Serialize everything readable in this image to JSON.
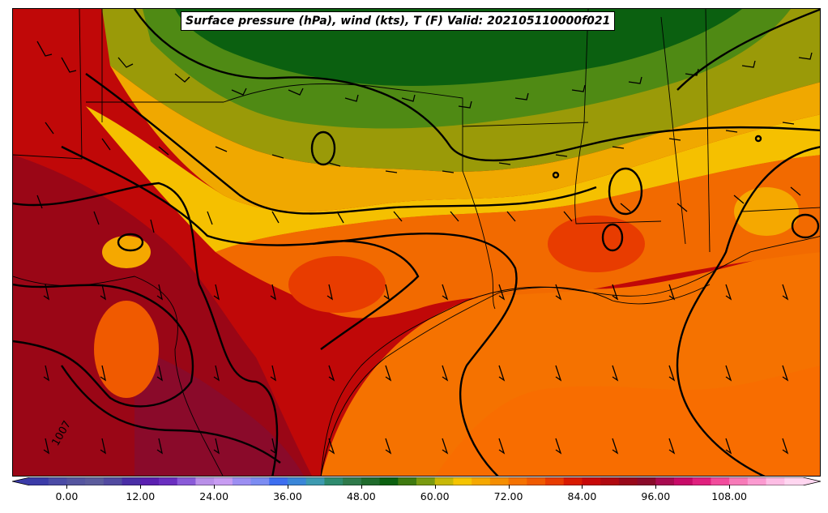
{
  "title": "Surface pressure (hPa), wind (kts), T (F) Valid: 202105110000f021",
  "colorbar": {
    "tick_labels": [
      "0.00",
      "12.00",
      "24.00",
      "36.00",
      "48.00",
      "60.00",
      "72.00",
      "84.00",
      "96.00",
      "108.00"
    ],
    "min": -6,
    "max": 120,
    "step": 3,
    "extend": "both",
    "colors": [
      "#3b3ba8",
      "#4b4ba6",
      "#55559f",
      "#5c5c9c",
      "#524aa0",
      "#4a2ea6",
      "#5a1fb0",
      "#6a2ec0",
      "#8a5ad8",
      "#b98fe8",
      "#c89cf2",
      "#9c8ef2",
      "#7c8cf2",
      "#3d6ef0",
      "#3a86d8",
      "#3d9ab0",
      "#2e8b6e",
      "#2f7a4a",
      "#1f6b2c",
      "#0b6010",
      "#3f7a10",
      "#7a9a10",
      "#c8b806",
      "#f5c400",
      "#f5a800",
      "#f58e00",
      "#f57200",
      "#f05a00",
      "#e83c00",
      "#d81a00",
      "#c80808",
      "#b00810",
      "#98081a",
      "#8a0a2a",
      "#a80a50",
      "#c80a68",
      "#e0207e",
      "#f24b9c",
      "#f77ab8",
      "#fb9ad0",
      "#fdbde4",
      "#ffd6f0"
    ]
  },
  "contour_labels": [
    "1007"
  ],
  "map": {
    "variable_colors": {
      "hot": "#c00808",
      "very_hot": "#98081a",
      "warm": "#f57200",
      "mild": "#f5a800",
      "cool": "#c8b806",
      "cooler": "#7a9a10",
      "coolest": "#1f6b2c"
    }
  }
}
